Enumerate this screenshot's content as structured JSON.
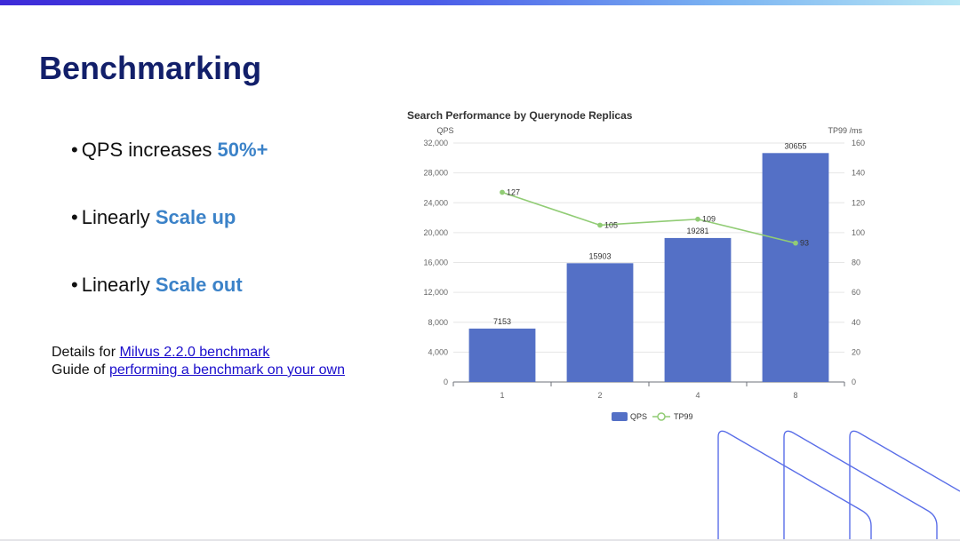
{
  "slide": {
    "title": "Benchmarking",
    "bullets": [
      {
        "text": "QPS increases ",
        "highlight": "50%+"
      },
      {
        "text": "Linearly ",
        "highlight": "Scale up"
      },
      {
        "text": "Linearly ",
        "highlight": "Scale out"
      }
    ],
    "bullet_glyph": "•",
    "details": [
      {
        "prefix": "Details for ",
        "link": "Milvus 2.2.0 benchmark"
      },
      {
        "prefix": "Guide of ",
        "link": "performing a benchmark on your own"
      }
    ]
  },
  "chart_data": {
    "type": "bar",
    "title": "Search Performance by Querynode Replicas",
    "categories": [
      "1",
      "2",
      "4",
      "8"
    ],
    "ylabel": "QPS",
    "y2label": "TP99 /ms",
    "ylim": [
      0,
      32000
    ],
    "y2lim": [
      0,
      160
    ],
    "yticks": [
      "0",
      "4,000",
      "8,000",
      "12,000",
      "16,000",
      "20,000",
      "24,000",
      "28,000",
      "32,000"
    ],
    "y2ticks": [
      "0",
      "20",
      "40",
      "60",
      "80",
      "100",
      "120",
      "140",
      "160"
    ],
    "series": [
      {
        "name": "QPS",
        "kind": "bar",
        "axis": "left",
        "color": "#5470c6",
        "values": [
          7153,
          15903,
          19281,
          30655
        ],
        "labels": [
          "7153",
          "15903",
          "19281",
          "30655"
        ]
      },
      {
        "name": "TP99",
        "kind": "line",
        "axis": "right",
        "color": "#91cc75",
        "values": [
          127,
          105,
          109,
          93
        ],
        "labels": [
          "127",
          "105",
          "109",
          "93"
        ]
      }
    ],
    "legend_position": "bottom-center",
    "grid": true
  },
  "colors": {
    "title": "#121f6a",
    "highlight": "#3b82c8",
    "link": "#1a0dcc",
    "deco_line": "#5a6ee8"
  }
}
